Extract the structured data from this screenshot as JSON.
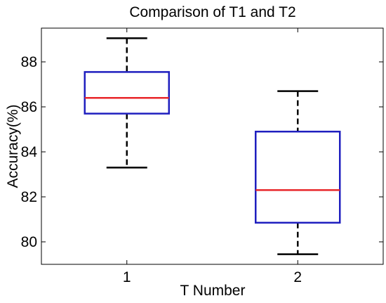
{
  "chart_data": {
    "type": "box",
    "title": "Comparison of T1 and T2",
    "xlabel": "T Number",
    "ylabel": "Accuracy(%)",
    "categories": [
      "1",
      "2"
    ],
    "ylim": [
      79.0,
      89.5
    ],
    "yticks": [
      80,
      82,
      84,
      86,
      88
    ],
    "grid": false,
    "boxes": [
      {
        "category": "1",
        "min": 83.3,
        "q1": 85.7,
        "median": 86.4,
        "q3": 87.55,
        "max": 89.05
      },
      {
        "category": "2",
        "min": 79.45,
        "q1": 80.85,
        "median": 82.3,
        "q3": 84.9,
        "max": 86.7
      }
    ],
    "colors": {
      "box": "#1f1fbf",
      "median": "#e8262a",
      "whisker": "#000000",
      "axes": "#000000"
    }
  }
}
